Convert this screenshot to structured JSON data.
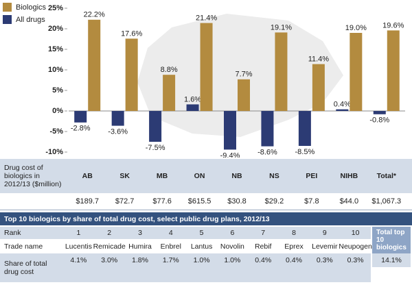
{
  "chart_data": {
    "type": "bar",
    "categories": [
      "AB",
      "SK",
      "MB",
      "ON",
      "NB",
      "NS",
      "PEI",
      "NIHB",
      "Total*"
    ],
    "series": [
      {
        "name": "Biologics",
        "color": "#b38b3f",
        "values": [
          22.2,
          17.6,
          8.8,
          21.4,
          7.7,
          19.1,
          11.4,
          19.0,
          19.6
        ],
        "value_labels": [
          "22.2%",
          "17.6%",
          "8.8%",
          "21.4%",
          "7.7%",
          "19.1%",
          "11.4%",
          "19.0%",
          "19.6%"
        ]
      },
      {
        "name": "All drugs",
        "color": "#2c3b74",
        "values": [
          -2.8,
          -3.6,
          -7.5,
          1.6,
          -9.4,
          -8.6,
          -8.5,
          0.4,
          -0.8
        ],
        "value_labels": [
          "-2.8%",
          "-3.6%",
          "-7.5%",
          "1.6%",
          "-9.4%",
          "-8.6%",
          "-8.5%",
          "0.4%",
          "-0.8%"
        ]
      }
    ],
    "ylim": [
      -10,
      25
    ],
    "yticks": [
      {
        "value": -10,
        "label": "-10%"
      },
      {
        "value": -5,
        "label": "-5%"
      },
      {
        "value": 0,
        "label": "0%"
      },
      {
        "value": 5,
        "label": "5%"
      },
      {
        "value": 10,
        "label": "10%"
      },
      {
        "value": 15,
        "label": "15%"
      },
      {
        "value": 20,
        "label": "20%"
      },
      {
        "value": 25,
        "label": "25%"
      }
    ],
    "legend": "top-left"
  },
  "cost_table": {
    "label": "Drug cost of biologics in 2012/13 ($million)",
    "values": [
      "$189.7",
      "$72.7",
      "$77.6",
      "$615.5",
      "$30.8",
      "$29.2",
      "$7.8",
      "$44.0",
      "$1,067.3"
    ]
  },
  "top10_table": {
    "title": "Top 10 biologics by share of total drug cost, select public drug plans, 2012/13",
    "row_labels": [
      "Rank",
      "Trade name",
      "Share of total drug cost"
    ],
    "ranks": [
      1,
      2,
      3,
      4,
      5,
      6,
      7,
      8,
      9,
      10
    ],
    "trade_names": [
      "Lucentis",
      "Remicade",
      "Humira",
      "Enbrel",
      "Lantus",
      "Novolin",
      "Rebif",
      "Eprex",
      "Levemir",
      "Neupogen"
    ],
    "shares": [
      "4.1%",
      "3.0%",
      "1.8%",
      "1.7%",
      "1.0%",
      "1.0%",
      "0.4%",
      "0.4%",
      "0.3%",
      "0.3%"
    ],
    "total_label": "Total top 10 biologics",
    "total_share": "14.1%"
  }
}
